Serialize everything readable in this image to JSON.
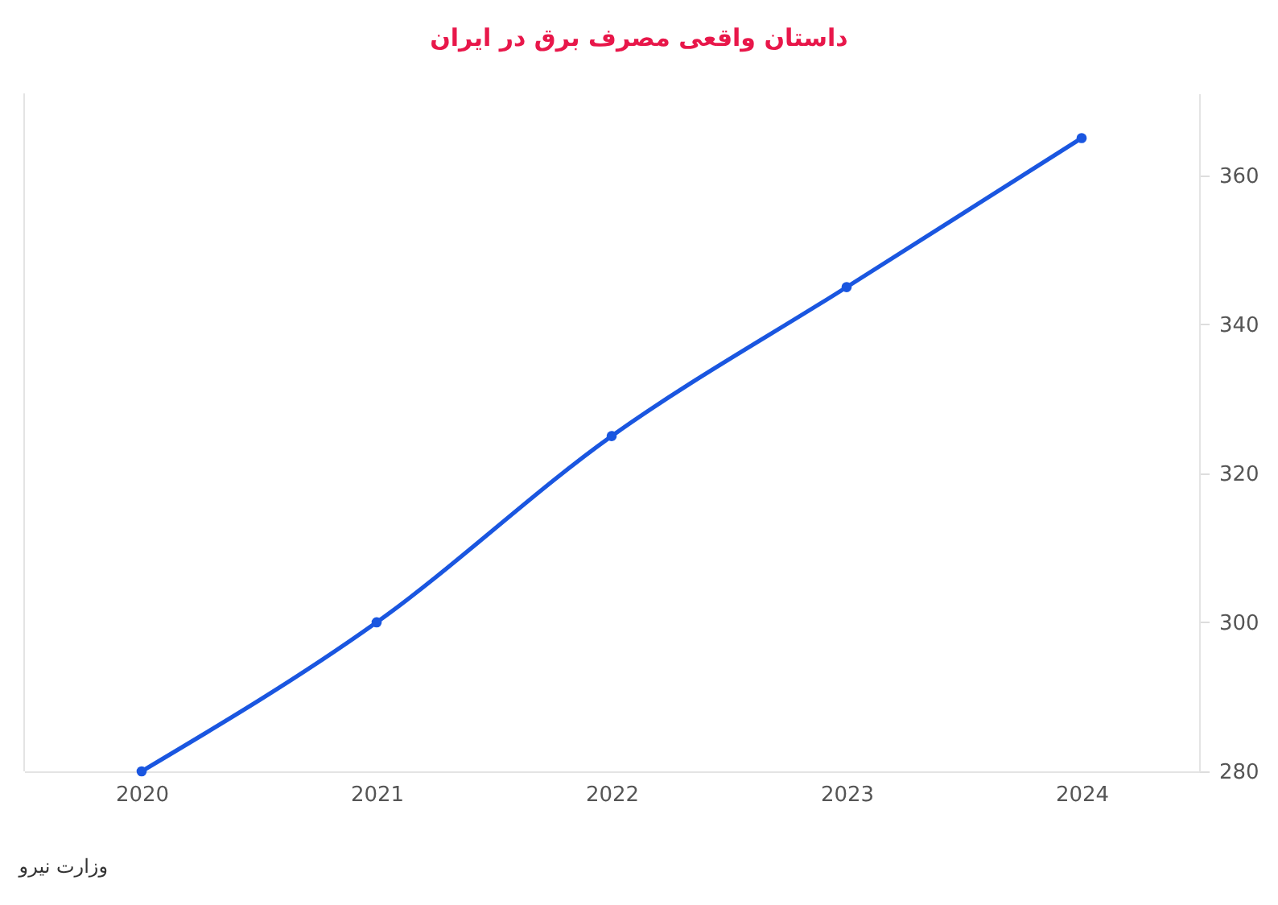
{
  "chart_data": {
    "type": "line",
    "title": "داستان واقعی مصرف برق در ایران",
    "categories": [
      "2020",
      "2021",
      "2022",
      "2023",
      "2024"
    ],
    "series": [
      {
        "color": "#1a56e0",
        "values": [
          280,
          300,
          325,
          345,
          365
        ]
      }
    ],
    "ylim": [
      280,
      371
    ],
    "yticks": [
      280,
      300,
      320,
      340,
      360
    ],
    "grid": false,
    "marker": "circle",
    "line_style": "solid",
    "annotations": [
      "وزارت نیرو"
    ]
  }
}
